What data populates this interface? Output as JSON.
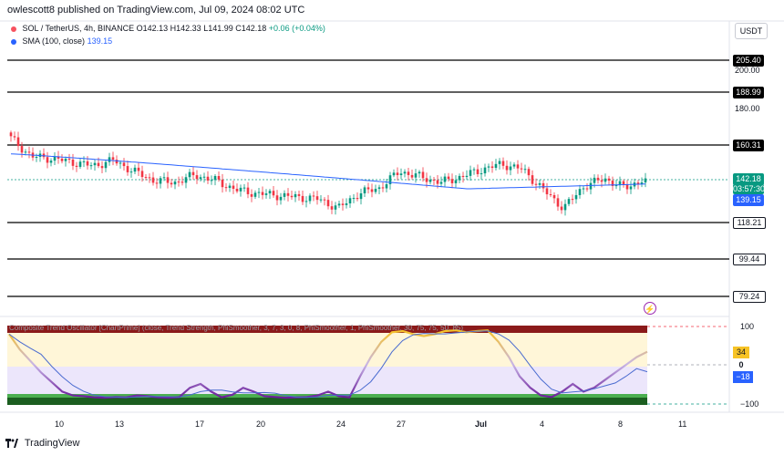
{
  "header": {
    "publisher_line": "owlescott8 published on TradingView.com, Jul 09, 2024 08:02 UTC"
  },
  "legend": {
    "symbol": "SOL / TetherUS, 4h, BINANCE",
    "open": "O142.13",
    "high": "H142.33",
    "low": "L141.99",
    "close": "C142.18",
    "change": "+0.06 (+0.04%)",
    "sma_label": "SMA (100, close)",
    "sma_value": "139.15"
  },
  "currency": "USDT",
  "price_axis": {
    "levels": [
      "205.40",
      "188.99",
      "160.31",
      "118.21",
      "99.44",
      "79.24"
    ],
    "ticks": [
      "200.00",
      "180.00"
    ],
    "current_price": "142.18",
    "countdown": "03:57:30",
    "sma_tag": "139.15"
  },
  "oscillator": {
    "title": "Composite Trend Oscillator [ChartPrime] (close, Trend Strength, PhiSmoother, 3, 7, 3, 0, 8, PhiSmoother, 1, PhiSmoother, 30, 75, 75, 50, 85)",
    "axis_top": "100",
    "axis_bottom": "−100",
    "value_a": "34",
    "value_b": "0",
    "value_c": "−18"
  },
  "time_axis": [
    "10",
    "13",
    "17",
    "20",
    "24",
    "27",
    "Jul",
    "4",
    "8",
    "11"
  ],
  "footer": {
    "brand": "TradingView"
  },
  "colors": {
    "up": "#089981",
    "down": "#f23645",
    "sma": "#2962ff",
    "osc_yellow": "#f7c325",
    "osc_purple": "#6a1b9a"
  },
  "chart_data": {
    "type": "candlestick",
    "symbol": "SOL / TetherUS",
    "interval": "4h",
    "horizontal_levels": [
      205.4,
      188.99,
      160.31,
      118.21,
      99.44,
      79.24
    ],
    "last_close": 142.18,
    "sma_100": 139.15,
    "x_ticks": [
      "10",
      "13",
      "17",
      "20",
      "24",
      "27",
      "Jul",
      "4",
      "8",
      "11"
    ],
    "close_path": [
      [
        "08",
        164
      ],
      [
        "09",
        154
      ],
      [
        "10",
        153
      ],
      [
        "11",
        151
      ],
      [
        "12",
        149
      ],
      [
        "13",
        152
      ],
      [
        "14",
        146
      ],
      [
        "15",
        141
      ],
      [
        "16",
        140
      ],
      [
        "17",
        144
      ],
      [
        "18",
        141
      ],
      [
        "19",
        136
      ],
      [
        "20",
        134
      ],
      [
        "21",
        133
      ],
      [
        "22",
        132
      ],
      [
        "23",
        131
      ],
      [
        "24",
        126
      ],
      [
        "25",
        134
      ],
      [
        "26",
        137
      ],
      [
        "27",
        146
      ],
      [
        "28",
        143
      ],
      [
        "29",
        140
      ],
      [
        "30",
        143
      ],
      [
        "Jul",
        147
      ],
      [
        "02",
        150
      ],
      [
        "03",
        147
      ],
      [
        "04",
        136
      ],
      [
        "05",
        126
      ],
      [
        "06",
        138
      ],
      [
        "07",
        142
      ],
      [
        "08",
        137
      ],
      [
        "09",
        142.18
      ]
    ],
    "oscillator": {
      "range": [
        -100,
        100
      ],
      "readouts": [
        34,
        0,
        -18
      ]
    }
  }
}
